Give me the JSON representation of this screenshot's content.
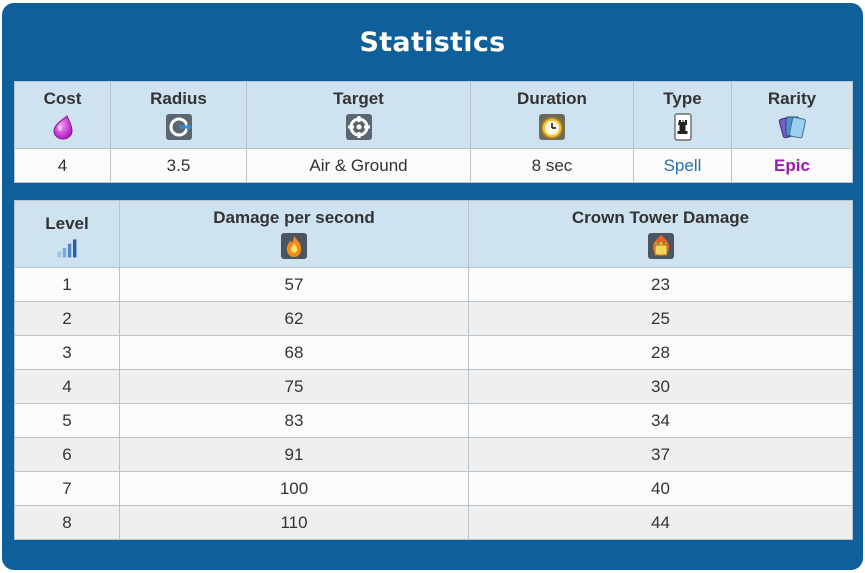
{
  "title": "Statistics",
  "stats": {
    "headers": {
      "cost": "Cost",
      "radius": "Radius",
      "target": "Target",
      "duration": "Duration",
      "type": "Type",
      "rarity": "Rarity"
    },
    "values": {
      "cost": "4",
      "radius": "3.5",
      "target": "Air & Ground",
      "duration": "8 sec",
      "type": "Spell",
      "rarity": "Epic"
    },
    "icons": {
      "cost": "elixir-drop-icon",
      "radius": "radius-icon",
      "target": "crosshair-target-icon",
      "duration": "clock-icon",
      "type": "tower-card-icon",
      "rarity": "cards-stack-icon"
    }
  },
  "levels": {
    "headers": {
      "level": "Level",
      "dps": "Damage per second",
      "crown": "Crown Tower Damage"
    },
    "icons": {
      "level": "level-bars-icon",
      "dps": "fire-damage-icon",
      "crown": "crown-tower-damage-icon"
    },
    "rows": [
      {
        "level": "1",
        "dps": "57",
        "crown": "23"
      },
      {
        "level": "2",
        "dps": "62",
        "crown": "25"
      },
      {
        "level": "3",
        "dps": "68",
        "crown": "28"
      },
      {
        "level": "4",
        "dps": "75",
        "crown": "30"
      },
      {
        "level": "5",
        "dps": "83",
        "crown": "34"
      },
      {
        "level": "6",
        "dps": "91",
        "crown": "37"
      },
      {
        "level": "7",
        "dps": "100",
        "crown": "40"
      },
      {
        "level": "8",
        "dps": "110",
        "crown": "44"
      }
    ]
  },
  "colors": {
    "panel": "#0f5f9a",
    "header": "#cfe2f0",
    "type": "#2a6fa8",
    "rarity": "#9a1bb0"
  }
}
